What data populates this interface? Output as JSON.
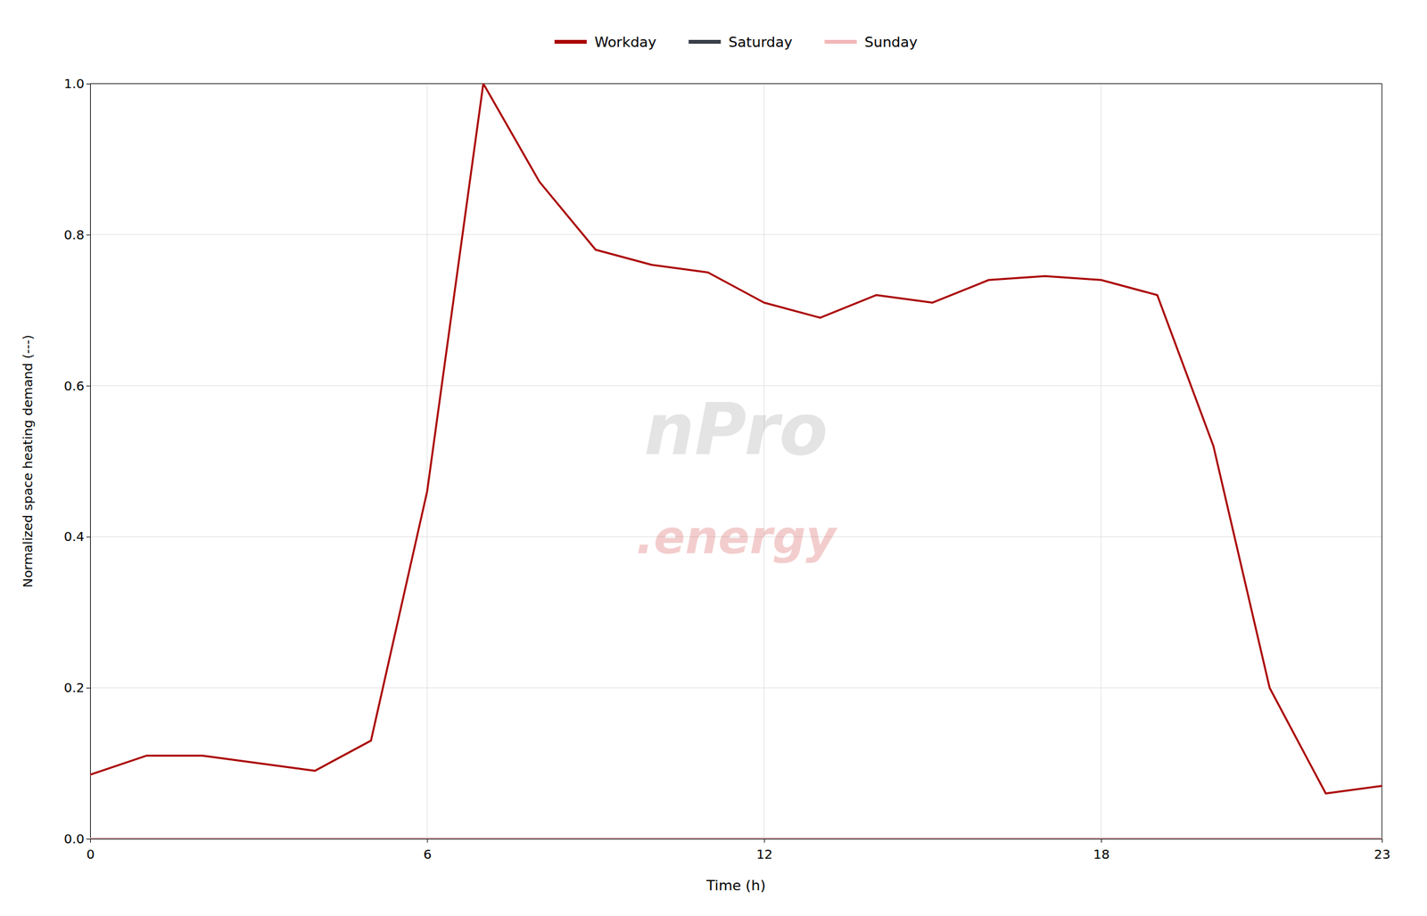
{
  "chart_data": {
    "type": "line",
    "xlabel": "Time (h)",
    "ylabel": "Normalized space heating demand (---)",
    "xlim": [
      0,
      23
    ],
    "ylim": [
      0.0,
      1.0
    ],
    "xticks": [
      0,
      6,
      12,
      18,
      23
    ],
    "yticks": [
      {
        "value": 0.0,
        "label": "0.0"
      },
      0.2,
      0.4,
      0.6,
      0.8,
      {
        "value": 1.0,
        "label": "1.0"
      }
    ],
    "grid": true,
    "legend": "top",
    "series": [
      {
        "name": "Workday",
        "color": "#aa0000",
        "x": [
          0,
          1,
          2,
          3,
          4,
          5,
          6,
          7,
          8,
          9,
          10,
          11,
          12,
          13,
          14,
          15,
          16,
          17,
          18,
          19,
          20,
          21,
          22,
          23
        ],
        "values": [
          0.085,
          0.11,
          0.11,
          0.1,
          0.09,
          0.13,
          0.46,
          1.0,
          0.87,
          0.78,
          0.76,
          0.75,
          0.71,
          0.69,
          0.72,
          0.71,
          0.74,
          0.745,
          0.74,
          0.72,
          0.52,
          0.2,
          0.06,
          0.07
        ]
      },
      {
        "name": "Saturday",
        "color": "#3a3f4a",
        "x": [
          0,
          23
        ],
        "values": [
          0.0,
          0.0
        ]
      },
      {
        "name": "Sunday",
        "color": "#f2b8b8",
        "x": [
          0,
          23
        ],
        "values": [
          0.0,
          0.0
        ]
      }
    ],
    "annotations": [
      {
        "text": "nPro",
        "color": "#888888"
      },
      {
        "text": ".energy",
        "color": "#cc2222"
      }
    ]
  }
}
